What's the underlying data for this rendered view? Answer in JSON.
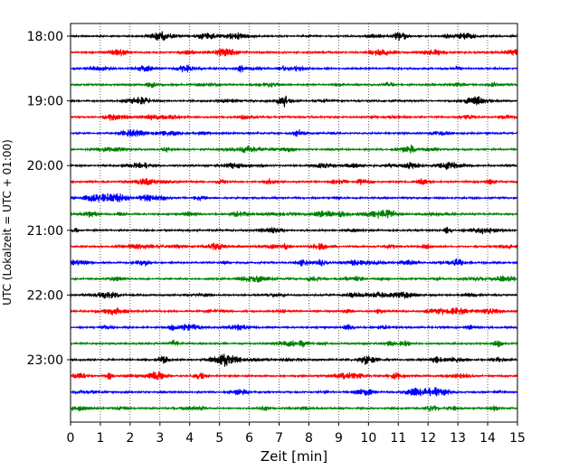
{
  "chart_data": {
    "type": "line",
    "title": "",
    "xlabel": "Zeit  [min]",
    "ylabel": "UTC (Lokalzeit = UTC + 01:00)",
    "xlim": [
      0,
      15
    ],
    "x_ticks": [
      "0",
      "1",
      "2",
      "3",
      "4",
      "5",
      "6",
      "7",
      "8",
      "9",
      "10",
      "11",
      "12",
      "13",
      "14",
      "15"
    ],
    "y_ticks": [
      "18:00",
      "19:00",
      "20:00",
      "21:00",
      "22:00",
      "23:00"
    ],
    "grid": "vertical dotted",
    "legend": "none",
    "trace_interval_min": 15,
    "trace_colors": [
      "#000000",
      "#ff0000",
      "#0000ff",
      "#008000"
    ],
    "series": [
      {
        "start": "18:00",
        "color": "#000000"
      },
      {
        "start": "18:15",
        "color": "#ff0000"
      },
      {
        "start": "18:30",
        "color": "#0000ff"
      },
      {
        "start": "18:45",
        "color": "#008000"
      },
      {
        "start": "19:00",
        "color": "#000000"
      },
      {
        "start": "19:15",
        "color": "#ff0000"
      },
      {
        "start": "19:30",
        "color": "#0000ff"
      },
      {
        "start": "19:45",
        "color": "#008000"
      },
      {
        "start": "20:00",
        "color": "#000000"
      },
      {
        "start": "20:15",
        "color": "#ff0000"
      },
      {
        "start": "20:30",
        "color": "#0000ff"
      },
      {
        "start": "20:45",
        "color": "#008000"
      },
      {
        "start": "21:00",
        "color": "#000000"
      },
      {
        "start": "21:15",
        "color": "#ff0000"
      },
      {
        "start": "21:30",
        "color": "#0000ff"
      },
      {
        "start": "21:45",
        "color": "#008000"
      },
      {
        "start": "22:00",
        "color": "#000000"
      },
      {
        "start": "22:15",
        "color": "#ff0000"
      },
      {
        "start": "22:30",
        "color": "#0000ff"
      },
      {
        "start": "22:45",
        "color": "#008000"
      },
      {
        "start": "23:00",
        "color": "#000000"
      },
      {
        "start": "23:15",
        "color": "#ff0000"
      },
      {
        "start": "23:30",
        "color": "#0000ff"
      },
      {
        "start": "23:45",
        "color": "#008000"
      }
    ]
  }
}
